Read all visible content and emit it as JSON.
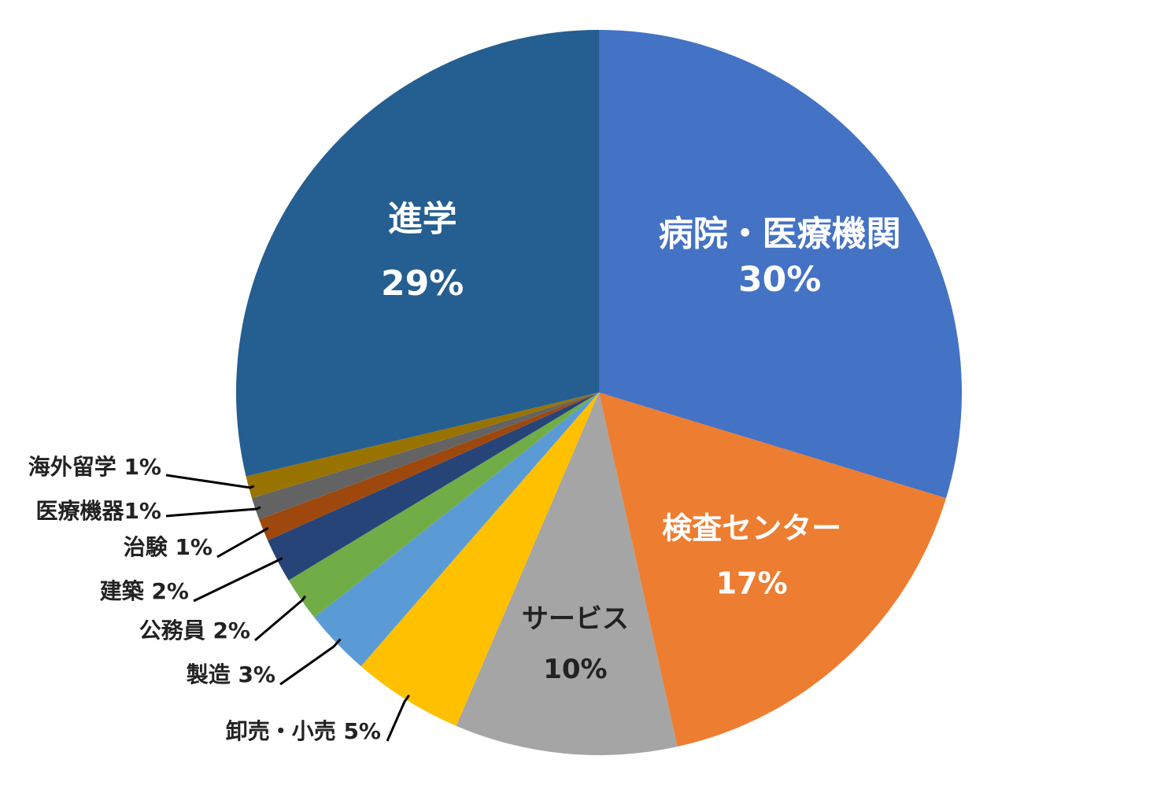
{
  "chart_data": {
    "type": "pie",
    "title": "",
    "slices": [
      {
        "name": "病院・医療機関",
        "value": 30,
        "pct_label": "30%",
        "color": "#4472C4",
        "label_inside": true,
        "label_color": "#ffffff"
      },
      {
        "name": "検査センター",
        "value": 17,
        "pct_label": "17%",
        "color": "#ED7D31",
        "label_inside": true,
        "label_color": "#ffffff"
      },
      {
        "name": "サービス",
        "value": 10,
        "pct_label": "10%",
        "color": "#A5A5A5",
        "label_inside": true,
        "label_color": "#222222"
      },
      {
        "name": "卸売・小売",
        "value": 5,
        "pct_label": "5%",
        "color": "#FFC000",
        "label_inside": false,
        "label_text": "卸売・小売 5%"
      },
      {
        "name": "製造",
        "value": 3,
        "pct_label": "3%",
        "color": "#5B9BD5",
        "label_inside": false,
        "label_text": "製造 3%"
      },
      {
        "name": "公務員",
        "value": 2,
        "pct_label": "2%",
        "color": "#70AD47",
        "label_inside": false,
        "label_text": "公務員 2%"
      },
      {
        "name": "建築",
        "value": 2,
        "pct_label": "2%",
        "color": "#264478",
        "label_inside": false,
        "label_text": "建築 2%"
      },
      {
        "name": "治験",
        "value": 1,
        "pct_label": "1%",
        "color": "#9E480E",
        "label_inside": false,
        "label_text": "治験 1%"
      },
      {
        "name": "医療機器",
        "value": 1,
        "pct_label": "1%",
        "color": "#636363",
        "label_inside": false,
        "label_text": "医療機器1%"
      },
      {
        "name": "海外留学",
        "value": 1,
        "pct_label": "1%",
        "color": "#997300",
        "label_inside": false,
        "label_text": "海外留学 1%"
      },
      {
        "name": "進学",
        "value": 29,
        "pct_label": "29%",
        "color": "#255E91",
        "label_inside": true,
        "label_color": "#ffffff"
      }
    ],
    "legend": "none"
  }
}
